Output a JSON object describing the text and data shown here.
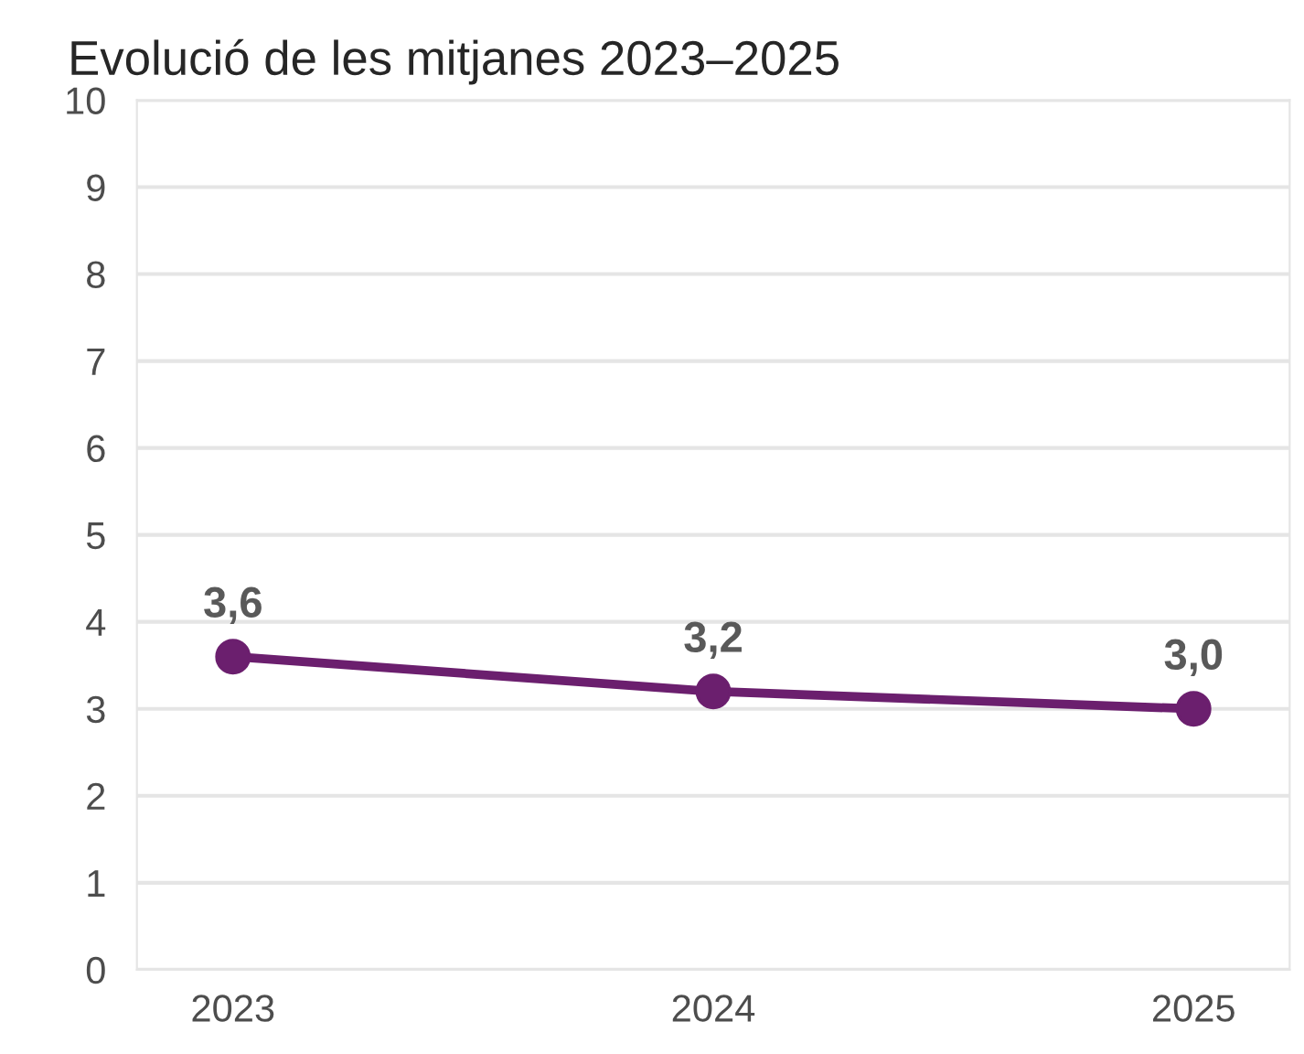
{
  "chart_data": {
    "type": "line",
    "title": "Evolució de les mitjanes 2023–2025",
    "categories": [
      "2023",
      "2024",
      "2025"
    ],
    "series": [
      {
        "color": "#6b1f6e",
        "values": [
          3.6,
          3.2,
          3.0
        ],
        "value_labels": [
          "3,6",
          "3,2",
          "3,0"
        ]
      }
    ],
    "ylim": [
      0,
      10
    ],
    "yticks": [
      0,
      1,
      2,
      3,
      4,
      5,
      6,
      7,
      8,
      9,
      10
    ],
    "grid": "y",
    "marker": "circle",
    "line_style": "solid",
    "legend": false
  }
}
